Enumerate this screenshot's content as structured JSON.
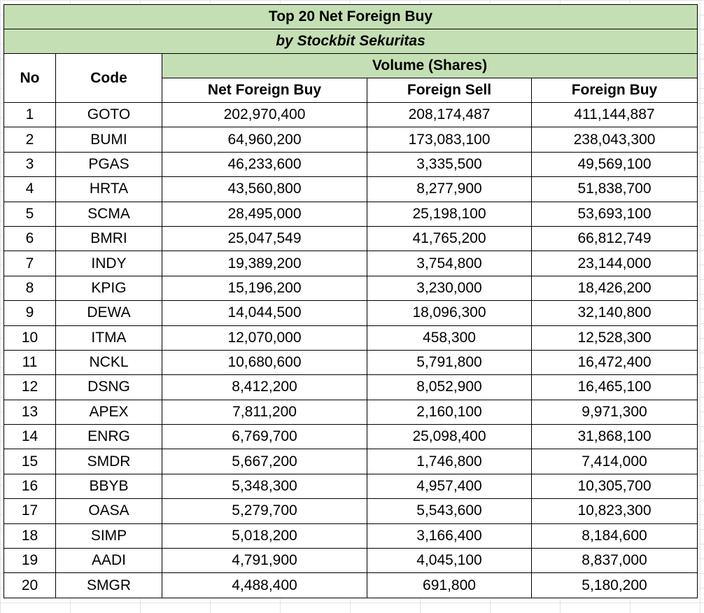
{
  "title": "Top 20 Net Foreign Buy",
  "subtitle": "by Stockbit Sekuritas",
  "headers": {
    "no": "No",
    "code": "Code",
    "volume_group": "Volume (Shares)",
    "net_foreign_buy": "Net Foreign Buy",
    "foreign_sell": "Foreign Sell",
    "foreign_buy": "Foreign Buy"
  },
  "colors": {
    "header_green": "#c5dfb4",
    "border": "#000000"
  },
  "rows": [
    {
      "no": "1",
      "code": "GOTO",
      "net": "202,970,400",
      "sell": "208,174,487",
      "buy": "411,144,887"
    },
    {
      "no": "2",
      "code": "BUMI",
      "net": "64,960,200",
      "sell": "173,083,100",
      "buy": "238,043,300"
    },
    {
      "no": "3",
      "code": "PGAS",
      "net": "46,233,600",
      "sell": "3,335,500",
      "buy": "49,569,100"
    },
    {
      "no": "4",
      "code": "HRTA",
      "net": "43,560,800",
      "sell": "8,277,900",
      "buy": "51,838,700"
    },
    {
      "no": "5",
      "code": "SCMA",
      "net": "28,495,000",
      "sell": "25,198,100",
      "buy": "53,693,100"
    },
    {
      "no": "6",
      "code": "BMRI",
      "net": "25,047,549",
      "sell": "41,765,200",
      "buy": "66,812,749"
    },
    {
      "no": "7",
      "code": "INDY",
      "net": "19,389,200",
      "sell": "3,754,800",
      "buy": "23,144,000"
    },
    {
      "no": "8",
      "code": "KPIG",
      "net": "15,196,200",
      "sell": "3,230,000",
      "buy": "18,426,200"
    },
    {
      "no": "9",
      "code": "DEWA",
      "net": "14,044,500",
      "sell": "18,096,300",
      "buy": "32,140,800"
    },
    {
      "no": "10",
      "code": "ITMA",
      "net": "12,070,000",
      "sell": "458,300",
      "buy": "12,528,300"
    },
    {
      "no": "11",
      "code": "NCKL",
      "net": "10,680,600",
      "sell": "5,791,800",
      "buy": "16,472,400"
    },
    {
      "no": "12",
      "code": "DSNG",
      "net": "8,412,200",
      "sell": "8,052,900",
      "buy": "16,465,100"
    },
    {
      "no": "13",
      "code": "APEX",
      "net": "7,811,200",
      "sell": "2,160,100",
      "buy": "9,971,300"
    },
    {
      "no": "14",
      "code": "ENRG",
      "net": "6,769,700",
      "sell": "25,098,400",
      "buy": "31,868,100"
    },
    {
      "no": "15",
      "code": "SMDR",
      "net": "5,667,200",
      "sell": "1,746,800",
      "buy": "7,414,000"
    },
    {
      "no": "16",
      "code": "BBYB",
      "net": "5,348,300",
      "sell": "4,957,400",
      "buy": "10,305,700"
    },
    {
      "no": "17",
      "code": "OASA",
      "net": "5,279,700",
      "sell": "5,543,600",
      "buy": "10,823,300"
    },
    {
      "no": "18",
      "code": "SIMP",
      "net": "5,018,200",
      "sell": "3,166,400",
      "buy": "8,184,600"
    },
    {
      "no": "19",
      "code": "AADI",
      "net": "4,791,900",
      "sell": "4,045,100",
      "buy": "8,837,000"
    },
    {
      "no": "20",
      "code": "SMGR",
      "net": "4,488,400",
      "sell": "691,800",
      "buy": "5,180,200"
    }
  ]
}
